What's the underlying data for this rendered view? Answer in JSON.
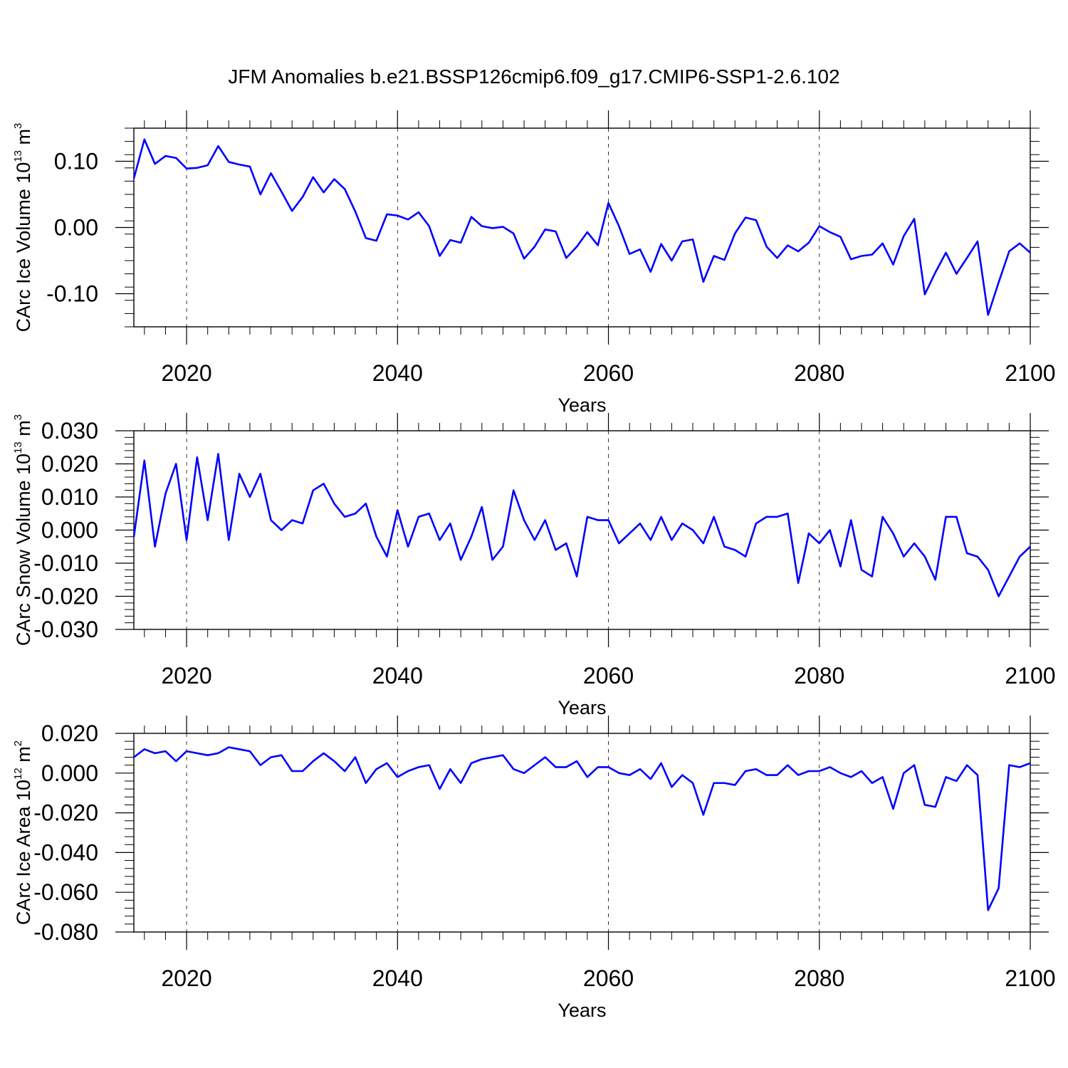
{
  "title": "JFM Anomalies b.e21.BSSP126cmip6.f09_g17.CMIP6-SSP1-2.6.102",
  "line_color": "#0000ff",
  "chart_data": [
    {
      "type": "line",
      "xlabel": "Years",
      "ylabel": {
        "base": "CArc Ice Volume 10",
        "exp": "13",
        "unit": " m",
        "unit_exp": "3"
      },
      "xlim": [
        2015,
        2100
      ],
      "ylim": [
        -0.15,
        0.15
      ],
      "yticks": [
        -0.1,
        0.0,
        0.1
      ],
      "ytick_labels": [
        "-0.10",
        "0.00",
        "0.10"
      ],
      "yminor_step": 0.02,
      "xticks": [
        2020,
        2040,
        2060,
        2080,
        2100
      ],
      "xtick_labels": [
        "2020",
        "2040",
        "2060",
        "2080",
        "2100"
      ],
      "x": [
        2015,
        2016,
        2017,
        2018,
        2019,
        2020,
        2021,
        2022,
        2023,
        2024,
        2025,
        2026,
        2027,
        2028,
        2029,
        2030,
        2031,
        2032,
        2033,
        2034,
        2035,
        2036,
        2037,
        2038,
        2039,
        2040,
        2041,
        2042,
        2043,
        2044,
        2045,
        2046,
        2047,
        2048,
        2049,
        2050,
        2051,
        2052,
        2053,
        2054,
        2055,
        2056,
        2057,
        2058,
        2059,
        2060,
        2061,
        2062,
        2063,
        2064,
        2065,
        2066,
        2067,
        2068,
        2069,
        2070,
        2071,
        2072,
        2073,
        2074,
        2075,
        2076,
        2077,
        2078,
        2079,
        2080,
        2081,
        2082,
        2083,
        2084,
        2085,
        2086,
        2087,
        2088,
        2089,
        2090,
        2091,
        2092,
        2093,
        2094,
        2095,
        2096,
        2097,
        2098,
        2099,
        2100
      ],
      "values": [
        0.074,
        0.133,
        0.096,
        0.108,
        0.105,
        0.089,
        0.09,
        0.094,
        0.123,
        0.099,
        0.095,
        0.092,
        0.05,
        0.082,
        0.054,
        0.025,
        0.046,
        0.076,
        0.053,
        0.073,
        0.058,
        0.024,
        -0.016,
        -0.02,
        0.02,
        0.018,
        0.012,
        0.023,
        0.002,
        -0.043,
        -0.019,
        -0.023,
        0.016,
        0.002,
        -0.001,
        0.001,
        -0.009,
        -0.047,
        -0.029,
        -0.003,
        -0.006,
        -0.046,
        -0.029,
        -0.007,
        -0.027,
        0.037,
        0.002,
        -0.04,
        -0.033,
        -0.067,
        -0.025,
        -0.05,
        -0.021,
        -0.018,
        -0.082,
        -0.043,
        -0.049,
        -0.009,
        0.015,
        0.011,
        -0.029,
        -0.046,
        -0.027,
        -0.036,
        -0.023,
        0.002,
        -0.007,
        -0.014,
        -0.048,
        -0.043,
        -0.041,
        -0.024,
        -0.056,
        -0.013,
        0.013,
        -0.101,
        -0.068,
        -0.038,
        -0.07,
        -0.046,
        -0.021,
        -0.132,
        -0.083,
        -0.036,
        -0.024,
        -0.038
      ]
    },
    {
      "type": "line",
      "xlabel": "Years",
      "ylabel": {
        "base": "CArc Snow Volume 10",
        "exp": "13",
        "unit": " m",
        "unit_exp": "3"
      },
      "xlim": [
        2015,
        2100
      ],
      "ylim": [
        -0.03,
        0.03
      ],
      "yticks": [
        -0.03,
        -0.02,
        -0.01,
        0.0,
        0.01,
        0.02,
        0.03
      ],
      "ytick_labels": [
        "-0.030",
        "-0.020",
        "-0.010",
        "0.000",
        "0.010",
        "0.020",
        "0.030"
      ],
      "yminor_step": 0.002,
      "xticks": [
        2020,
        2040,
        2060,
        2080,
        2100
      ],
      "xtick_labels": [
        "2020",
        "2040",
        "2060",
        "2080",
        "2100"
      ],
      "x": [
        2015,
        2016,
        2017,
        2018,
        2019,
        2020,
        2021,
        2022,
        2023,
        2024,
        2025,
        2026,
        2027,
        2028,
        2029,
        2030,
        2031,
        2032,
        2033,
        2034,
        2035,
        2036,
        2037,
        2038,
        2039,
        2040,
        2041,
        2042,
        2043,
        2044,
        2045,
        2046,
        2047,
        2048,
        2049,
        2050,
        2051,
        2052,
        2053,
        2054,
        2055,
        2056,
        2057,
        2058,
        2059,
        2060,
        2061,
        2062,
        2063,
        2064,
        2065,
        2066,
        2067,
        2068,
        2069,
        2070,
        2071,
        2072,
        2073,
        2074,
        2075,
        2076,
        2077,
        2078,
        2079,
        2080,
        2081,
        2082,
        2083,
        2084,
        2085,
        2086,
        2087,
        2088,
        2089,
        2090,
        2091,
        2092,
        2093,
        2094,
        2095,
        2096,
        2097,
        2098,
        2099,
        2100
      ],
      "values": [
        -0.002,
        0.021,
        -0.005,
        0.011,
        0.02,
        -0.003,
        0.022,
        0.003,
        0.023,
        -0.003,
        0.017,
        0.01,
        0.017,
        0.003,
        -0.0,
        0.003,
        0.002,
        0.012,
        0.014,
        0.008,
        0.004,
        0.005,
        0.008,
        -0.002,
        -0.008,
        0.006,
        -0.005,
        0.004,
        0.005,
        -0.003,
        0.002,
        -0.009,
        -0.002,
        0.007,
        -0.009,
        -0.005,
        0.012,
        0.003,
        -0.003,
        0.003,
        -0.006,
        -0.004,
        -0.014,
        0.004,
        0.003,
        0.003,
        -0.004,
        -0.001,
        0.002,
        -0.003,
        0.004,
        -0.003,
        0.002,
        0.0,
        -0.004,
        0.004,
        -0.005,
        -0.006,
        -0.008,
        0.002,
        0.004,
        0.004,
        0.005,
        -0.016,
        -0.001,
        -0.004,
        -0.0,
        -0.011,
        0.003,
        -0.012,
        -0.014,
        0.004,
        -0.001,
        -0.008,
        -0.004,
        -0.008,
        -0.015,
        0.004,
        0.004,
        -0.007,
        -0.008,
        -0.012,
        -0.02,
        -0.014,
        -0.008,
        -0.005
      ]
    },
    {
      "type": "line",
      "xlabel": "Years",
      "ylabel": {
        "base": "CArc Ice Area 10",
        "exp": "12",
        "unit": " m",
        "unit_exp": "2"
      },
      "xlim": [
        2015,
        2100
      ],
      "ylim": [
        -0.08,
        0.02
      ],
      "yticks": [
        -0.08,
        -0.06,
        -0.04,
        -0.02,
        0.0,
        0.02
      ],
      "ytick_labels": [
        "-0.080",
        "-0.060",
        "-0.040",
        "-0.020",
        "0.000",
        "0.020"
      ],
      "yminor_step": 0.004,
      "xticks": [
        2020,
        2040,
        2060,
        2080,
        2100
      ],
      "xtick_labels": [
        "2020",
        "2040",
        "2060",
        "2080",
        "2100"
      ],
      "x": [
        2015,
        2016,
        2017,
        2018,
        2019,
        2020,
        2021,
        2022,
        2023,
        2024,
        2025,
        2026,
        2027,
        2028,
        2029,
        2030,
        2031,
        2032,
        2033,
        2034,
        2035,
        2036,
        2037,
        2038,
        2039,
        2040,
        2041,
        2042,
        2043,
        2044,
        2045,
        2046,
        2047,
        2048,
        2049,
        2050,
        2051,
        2052,
        2053,
        2054,
        2055,
        2056,
        2057,
        2058,
        2059,
        2060,
        2061,
        2062,
        2063,
        2064,
        2065,
        2066,
        2067,
        2068,
        2069,
        2070,
        2071,
        2072,
        2073,
        2074,
        2075,
        2076,
        2077,
        2078,
        2079,
        2080,
        2081,
        2082,
        2083,
        2084,
        2085,
        2086,
        2087,
        2088,
        2089,
        2090,
        2091,
        2092,
        2093,
        2094,
        2095,
        2096,
        2097,
        2098,
        2099,
        2100
      ],
      "values": [
        0.008,
        0.012,
        0.01,
        0.011,
        0.006,
        0.011,
        0.01,
        0.009,
        0.01,
        0.013,
        0.012,
        0.011,
        0.004,
        0.008,
        0.009,
        0.001,
        0.001,
        0.006,
        0.01,
        0.006,
        0.001,
        0.008,
        -0.005,
        0.002,
        0.005,
        -0.002,
        0.001,
        0.003,
        0.004,
        -0.008,
        0.002,
        -0.005,
        0.005,
        0.007,
        0.008,
        0.009,
        0.002,
        0.0,
        0.004,
        0.008,
        0.003,
        0.003,
        0.006,
        -0.002,
        0.003,
        0.003,
        -0.0,
        -0.001,
        0.002,
        -0.003,
        0.005,
        -0.007,
        -0.001,
        -0.005,
        -0.021,
        -0.005,
        -0.005,
        -0.006,
        0.001,
        0.002,
        -0.001,
        -0.001,
        0.004,
        -0.001,
        0.001,
        0.001,
        0.003,
        0.0,
        -0.002,
        0.001,
        -0.005,
        -0.002,
        -0.018,
        -0.0,
        0.004,
        -0.016,
        -0.017,
        -0.002,
        -0.004,
        0.004,
        -0.001,
        -0.069,
        -0.058,
        0.004,
        0.003,
        0.005
      ]
    }
  ]
}
